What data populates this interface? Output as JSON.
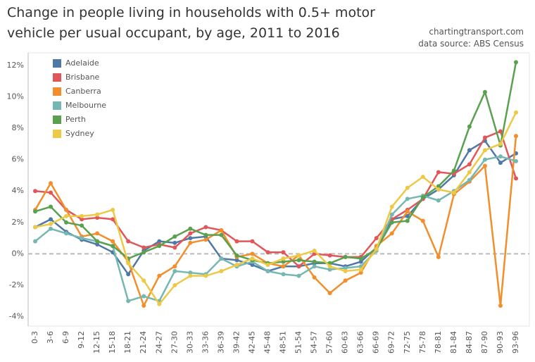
{
  "chart_data": {
    "type": "line",
    "title": "Change in people living in households with 0.5+ motor vehicle per usual occupant, by age, 2011 to 2016",
    "source_site": "chartingtransport.com",
    "source": "data source: ABS Census",
    "categories": [
      "0-3",
      "3-6",
      "6-9",
      "9-12",
      "12-15",
      "15-18",
      "18-21",
      "21-24",
      "24-27",
      "27-30",
      "30-33",
      "33-36",
      "36-39",
      "39-42",
      "42-45",
      "45-48",
      "48-51",
      "51-54",
      "54-57",
      "57-60",
      "60-63",
      "63-66",
      "66-69",
      "69-72",
      "72-75",
      "75-78",
      "78-81",
      "81-84",
      "84-87",
      "87-90",
      "90-93",
      "93-96"
    ],
    "series": [
      {
        "name": "Adelaide",
        "color": "#4e79a7",
        "values": [
          1.7,
          2.2,
          1.4,
          0.9,
          0.6,
          0.1,
          -1.3,
          0.2,
          0.8,
          0.7,
          1.0,
          1.1,
          -0.3,
          -0.4,
          -0.7,
          -1.1,
          -0.8,
          -0.8,
          -0.6,
          -0.6,
          -0.8,
          -0.5,
          0.4,
          2.2,
          2.4,
          3.5,
          4.1,
          5.0,
          6.6,
          7.2,
          5.8,
          6.4
        ]
      },
      {
        "name": "Brisbane",
        "color": "#e15759",
        "values": [
          4.0,
          3.9,
          2.8,
          2.2,
          2.3,
          2.2,
          0.8,
          0.4,
          0.6,
          0.4,
          1.3,
          1.7,
          1.5,
          0.8,
          0.8,
          0.1,
          0.1,
          -0.8,
          0.0,
          -0.1,
          -0.2,
          -0.2,
          1.0,
          2.2,
          2.8,
          3.5,
          5.2,
          5.1,
          5.7,
          7.4,
          7.8,
          4.8
        ]
      },
      {
        "name": "Canberra",
        "color": "#f28e2b",
        "values": [
          2.8,
          4.5,
          2.8,
          1.1,
          1.3,
          0.8,
          -0.5,
          -3.3,
          -1.4,
          -0.8,
          0.7,
          0.9,
          1.5,
          -0.2,
          0.0,
          -0.6,
          -0.8,
          -0.1,
          -1.5,
          -2.5,
          -1.7,
          -1.2,
          0.5,
          1.3,
          2.7,
          2.1,
          -0.2,
          3.8,
          4.6,
          5.6,
          -3.3,
          7.5
        ]
      },
      {
        "name": "Melbourne",
        "color": "#76b7b2",
        "values": [
          0.8,
          1.6,
          1.3,
          1.0,
          0.8,
          0.5,
          -3.0,
          -2.7,
          -3.0,
          -1.1,
          -1.2,
          -1.3,
          -0.3,
          -0.8,
          -0.5,
          -1.1,
          -1.3,
          -1.4,
          -0.8,
          -1.0,
          -0.9,
          -0.8,
          0.2,
          2.5,
          3.5,
          3.7,
          3.4,
          4.0,
          4.7,
          6.0,
          6.2,
          5.9
        ]
      },
      {
        "name": "Perth",
        "color": "#59a14f",
        "values": [
          2.7,
          3.0,
          2.0,
          1.8,
          0.8,
          0.5,
          -0.3,
          0.1,
          0.5,
          1.1,
          1.6,
          1.2,
          1.2,
          -0.1,
          -0.4,
          -0.6,
          -0.5,
          -0.4,
          -0.5,
          -0.6,
          -0.2,
          -0.3,
          0.3,
          2.0,
          2.1,
          3.6,
          4.3,
          5.3,
          8.1,
          10.3,
          6.9,
          12.2
        ]
      },
      {
        "name": "Sydney",
        "color": "#edc948",
        "values": [
          1.7,
          1.9,
          2.4,
          2.4,
          2.5,
          2.8,
          -0.6,
          -1.7,
          -3.2,
          -2.0,
          -1.4,
          -1.4,
          -1.1,
          -0.7,
          -0.3,
          -0.7,
          -0.3,
          -0.1,
          0.2,
          -0.8,
          -1.1,
          -1.0,
          0.3,
          3.0,
          4.2,
          4.9,
          4.1,
          3.9,
          5.2,
          6.6,
          7.0,
          9.0
        ]
      }
    ],
    "ylim": [
      -4.6,
      12.8
    ],
    "yticks": [
      {
        "value": -4,
        "label": "-4%"
      },
      {
        "value": -2,
        "label": "-2%"
      },
      {
        "value": 0,
        "label": "0%"
      },
      {
        "value": 2,
        "label": "2%"
      },
      {
        "value": 4,
        "label": "4%"
      },
      {
        "value": 6,
        "label": "6%"
      },
      {
        "value": 8,
        "label": "8%"
      },
      {
        "value": 10,
        "label": "10%"
      },
      {
        "value": 12,
        "label": "12%"
      }
    ],
    "legend": "top-left",
    "zero_line": true
  }
}
